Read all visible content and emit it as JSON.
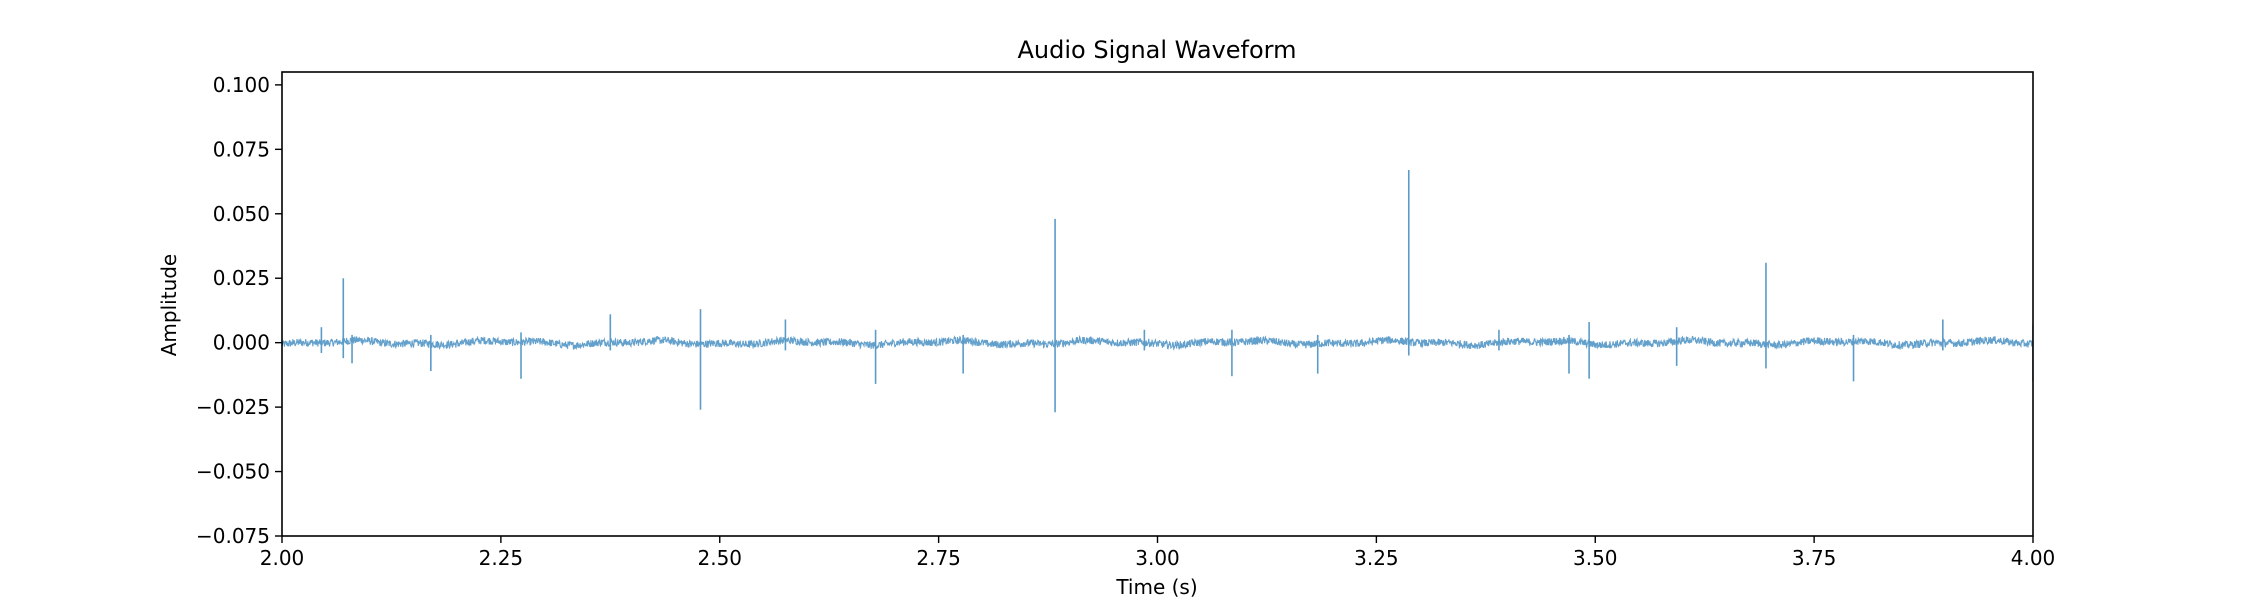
{
  "chart_data": {
    "type": "line",
    "title": "Audio Signal Waveform",
    "xlabel": "Time (s)",
    "ylabel": "Amplitude",
    "xlim": [
      2.0,
      4.0
    ],
    "ylim": [
      -0.075,
      0.105
    ],
    "xticks": [
      "2.00",
      "2.25",
      "2.50",
      "2.75",
      "3.00",
      "3.25",
      "3.50",
      "3.75",
      "4.00"
    ],
    "yticks": [
      "−0.075",
      "−0.050",
      "−0.025",
      "0.000",
      "0.025",
      "0.050",
      "0.075",
      "0.100"
    ],
    "xtick_values": [
      2.0,
      2.25,
      2.5,
      2.75,
      3.0,
      3.25,
      3.5,
      3.75,
      4.0
    ],
    "ytick_values": [
      -0.075,
      -0.05,
      -0.025,
      0.0,
      0.025,
      0.05,
      0.075,
      0.1
    ],
    "grid": false,
    "series_color": "#5b9bc8",
    "noise_amplitude": 0.0015,
    "series": [
      {
        "spikes": [
          {
            "t": 2.045,
            "max": 0.006,
            "min": -0.004
          },
          {
            "t": 2.07,
            "max": 0.025,
            "min": -0.006
          },
          {
            "t": 2.08,
            "max": 0.003,
            "min": -0.008
          },
          {
            "t": 2.17,
            "max": 0.003,
            "min": -0.011
          },
          {
            "t": 2.273,
            "max": 0.004,
            "min": -0.014
          },
          {
            "t": 2.375,
            "max": 0.011,
            "min": -0.003
          },
          {
            "t": 2.478,
            "max": 0.013,
            "min": -0.026
          },
          {
            "t": 2.575,
            "max": 0.009,
            "min": -0.003
          },
          {
            "t": 2.678,
            "max": 0.005,
            "min": -0.016
          },
          {
            "t": 2.778,
            "max": 0.003,
            "min": -0.012
          },
          {
            "t": 2.883,
            "max": 0.048,
            "min": -0.027
          },
          {
            "t": 2.985,
            "max": 0.005,
            "min": -0.003
          },
          {
            "t": 3.085,
            "max": 0.005,
            "min": -0.013
          },
          {
            "t": 3.183,
            "max": 0.003,
            "min": -0.012
          },
          {
            "t": 3.287,
            "max": 0.067,
            "min": -0.005
          },
          {
            "t": 3.39,
            "max": 0.005,
            "min": -0.003
          },
          {
            "t": 3.47,
            "max": 0.003,
            "min": -0.012
          },
          {
            "t": 3.493,
            "max": 0.008,
            "min": -0.014
          },
          {
            "t": 3.593,
            "max": 0.006,
            "min": -0.009
          },
          {
            "t": 3.695,
            "max": 0.031,
            "min": -0.01
          },
          {
            "t": 3.795,
            "max": 0.003,
            "min": -0.015
          },
          {
            "t": 3.897,
            "max": 0.009,
            "min": -0.003
          },
          {
            "t": 4.0,
            "max": 0.007,
            "min": -0.015
          }
        ]
      }
    ]
  }
}
